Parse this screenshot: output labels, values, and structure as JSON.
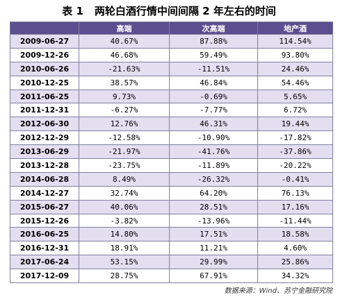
{
  "title": {
    "label": "表 1",
    "text": "两轮白酒行情中间间隔 2 年左右的时间"
  },
  "table": {
    "headers": [
      "高端",
      "次高端",
      "地产酒"
    ],
    "rows": [
      [
        "2009-06-27",
        "40.67%",
        "87.88%",
        "114.54%"
      ],
      [
        "2009-12-26",
        "46.68%",
        "59.49%",
        "93.80%"
      ],
      [
        "2010-06-26",
        "-21.63%",
        "-11.51%",
        "24.46%"
      ],
      [
        "2010-12-25",
        "38.57%",
        "46.84%",
        "54.46%"
      ],
      [
        "2011-06-25",
        "9.73%",
        "-0.69%",
        "5.65%"
      ],
      [
        "2011-12-31",
        "-6.27%",
        "-7.77%",
        "6.72%"
      ],
      [
        "2012-06-30",
        "12.76%",
        "46.31%",
        "19.44%"
      ],
      [
        "2012-12-29",
        "-12.58%",
        "-10.90%",
        "-17.82%"
      ],
      [
        "2013-06-29",
        "-21.97%",
        "-41.76%",
        "-37.86%"
      ],
      [
        "2013-12-28",
        "-23.75%",
        "-11.89%",
        "-20.22%"
      ],
      [
        "2014-06-28",
        "8.49%",
        "-26.32%",
        "-0.41%"
      ],
      [
        "2014-12-27",
        "32.74%",
        "64.20%",
        "76.13%"
      ],
      [
        "2015-06-27",
        "40.06%",
        "28.51%",
        "17.16%"
      ],
      [
        "2015-12-26",
        "-3.82%",
        "-13.96%",
        "-11.44%"
      ],
      [
        "2016-06-25",
        "14.80%",
        "17.51%",
        "18.58%"
      ],
      [
        "2016-12-31",
        "18.91%",
        "11.21%",
        "4.60%"
      ],
      [
        "2017-06-24",
        "53.15%",
        "29.99%",
        "25.86%"
      ],
      [
        "2017-12-09",
        "28.75%",
        "67.91%",
        "34.32%"
      ]
    ]
  },
  "source": "数据来源：Wind、苏宁金融研究院"
}
